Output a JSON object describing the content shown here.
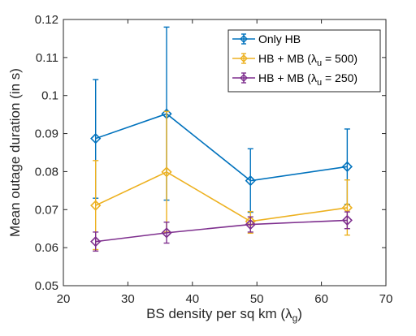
{
  "chart_data": {
    "type": "line",
    "xlabel": "BS density per sq km",
    "xlabel_symbol": "λ",
    "xlabel_sub": "g",
    "ylabel": "Mean outage duration (in s)",
    "xlim": [
      20,
      70
    ],
    "ylim": [
      0.05,
      0.12
    ],
    "xticks": [
      20,
      30,
      40,
      50,
      60,
      70
    ],
    "yticks": [
      0.05,
      0.06,
      0.07,
      0.08,
      0.09,
      0.1,
      0.11,
      0.12
    ],
    "ytick_labels": [
      "0.05",
      "0.06",
      "0.07",
      "0.08",
      "0.09",
      "0.1",
      "0.11",
      "0.12"
    ],
    "grid": false,
    "legend_position": "top-right",
    "x": [
      25,
      36,
      49,
      64
    ],
    "series": [
      {
        "name": "Only HB",
        "legend": {
          "prefix": "Only HB",
          "symbol": "",
          "sub": "",
          "suffix": ""
        },
        "color": "#0072BD",
        "marker": "diamond",
        "values": [
          0.0887,
          0.0952,
          0.0776,
          0.0813
        ],
        "err_low": [
          0.073,
          0.0725,
          0.0693,
          0.0714
        ],
        "err_high": [
          0.1042,
          0.118,
          0.086,
          0.0912
        ]
      },
      {
        "name": "HB + MB (λu = 500)",
        "legend": {
          "prefix": "HB + MB (",
          "symbol": "λ",
          "sub": "u",
          "suffix": " = 500)"
        },
        "color": "#EDB120",
        "marker": "diamond",
        "values": [
          0.0711,
          0.0799,
          0.0669,
          0.0705
        ],
        "err_low": [
          0.0595,
          0.0641,
          0.0638,
          0.0633
        ],
        "err_high": [
          0.0829,
          0.0958,
          0.0695,
          0.0778
        ]
      },
      {
        "name": "HB + MB (λu = 250)",
        "legend": {
          "prefix": "HB + MB (",
          "symbol": "λ",
          "sub": "u",
          "suffix": " = 250)"
        },
        "color": "#7E2F8E",
        "marker": "diamond",
        "values": [
          0.0616,
          0.0639,
          0.0661,
          0.0672
        ],
        "err_low": [
          0.0591,
          0.0612,
          0.0641,
          0.065
        ],
        "err_high": [
          0.0641,
          0.0667,
          0.0681,
          0.0694
        ]
      }
    ]
  }
}
